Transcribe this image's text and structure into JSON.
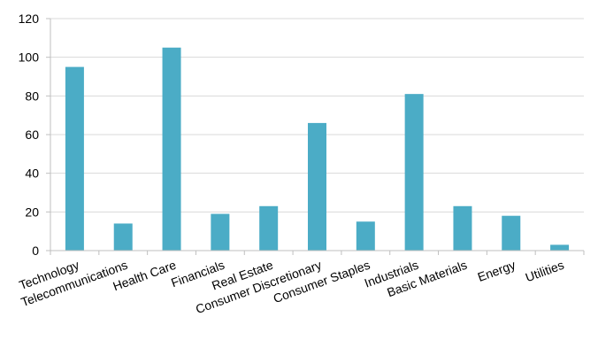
{
  "chart_data": {
    "type": "bar",
    "title": "",
    "xlabel": "",
    "ylabel": "",
    "categories": [
      "Technology",
      "Telecommunications",
      "Health Care",
      "Financials",
      "Real Estate",
      "Consumer Discretionary",
      "Consumer Staples",
      "Industrials",
      "Basic Materials",
      "Energy",
      "Utilities"
    ],
    "values": [
      95,
      14,
      105,
      19,
      23,
      66,
      15,
      81,
      23,
      18,
      3
    ],
    "ylim": [
      0,
      120
    ],
    "yticks": [
      0,
      20,
      40,
      60,
      80,
      100,
      120
    ],
    "grid": true,
    "legend": "none",
    "colors": {
      "bar": "#4bacc6",
      "grid": "#d9d9d9",
      "axis": "#bfbfbf"
    }
  }
}
